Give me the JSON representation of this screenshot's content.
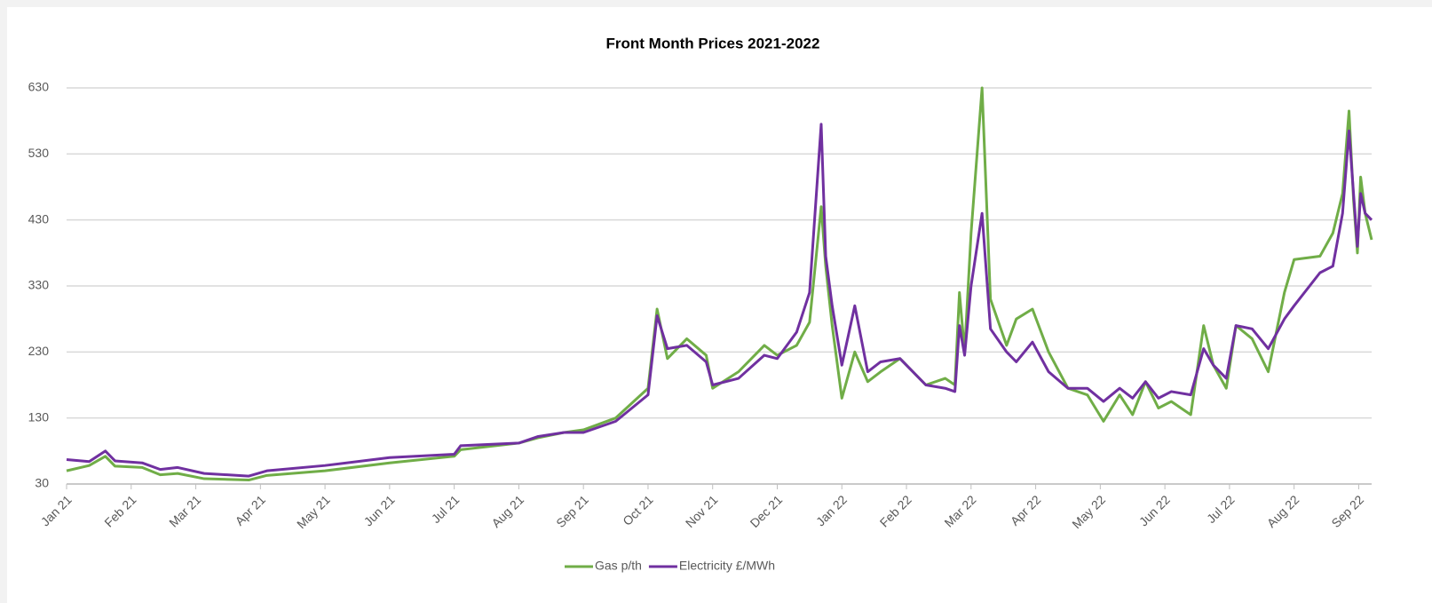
{
  "chart_data": {
    "type": "line",
    "title": "Front Month Prices 2021-2022",
    "x": [
      0,
      0.35,
      0.6,
      0.75,
      1.17,
      1.45,
      1.72,
      2.13,
      2.82,
      3.1,
      4.0,
      5.0,
      6.0,
      6.1,
      7.0,
      7.3,
      7.7,
      8.0,
      8.5,
      9.0,
      9.14,
      9.3,
      9.6,
      9.9,
      10.0,
      10.4,
      10.8,
      11.0,
      11.3,
      11.5,
      11.68,
      11.75,
      11.85,
      12.0,
      12.2,
      12.4,
      12.6,
      12.9,
      13.3,
      13.6,
      13.75,
      13.82,
      13.9,
      14.0,
      14.17,
      14.3,
      14.55,
      14.7,
      14.95,
      15.2,
      15.5,
      15.8,
      16.05,
      16.3,
      16.5,
      16.7,
      16.9,
      17.1,
      17.4,
      17.6,
      17.75,
      17.95,
      18.1,
      18.35,
      18.6,
      18.85,
      19.0,
      19.4,
      19.6,
      19.75,
      19.85,
      19.92,
      19.98,
      20.03,
      20.1,
      20.2
    ],
    "series": [
      {
        "name": "Gas p/th",
        "color": "#70ad47",
        "values": [
          50,
          58,
          72,
          57,
          55,
          44,
          46,
          38,
          36,
          43,
          50,
          62,
          72,
          82,
          92,
          100,
          108,
          112,
          130,
          175,
          295,
          220,
          250,
          225,
          175,
          200,
          240,
          225,
          240,
          275,
          450,
          360,
          270,
          160,
          230,
          185,
          200,
          220,
          180,
          190,
          180,
          320,
          230,
          410,
          630,
          310,
          240,
          280,
          295,
          230,
          175,
          165,
          125,
          165,
          135,
          185,
          145,
          155,
          135,
          270,
          210,
          175,
          270,
          250,
          200,
          320,
          370,
          375,
          410,
          470,
          595,
          460,
          380,
          495,
          440,
          400
        ]
      },
      {
        "name": "Electricity £/MWh",
        "color": "#7030a0",
        "values": [
          67,
          64,
          80,
          65,
          62,
          52,
          55,
          46,
          42,
          50,
          58,
          70,
          75,
          88,
          92,
          102,
          108,
          108,
          125,
          165,
          285,
          235,
          240,
          215,
          180,
          190,
          225,
          220,
          260,
          320,
          575,
          375,
          300,
          210,
          300,
          200,
          215,
          220,
          180,
          175,
          170,
          270,
          225,
          330,
          440,
          265,
          230,
          215,
          245,
          200,
          175,
          175,
          155,
          175,
          160,
          185,
          160,
          170,
          165,
          235,
          210,
          190,
          270,
          265,
          235,
          280,
          300,
          350,
          360,
          440,
          565,
          470,
          390,
          470,
          440,
          430
        ]
      }
    ],
    "xlim": [
      0,
      20.2
    ],
    "xticks": [
      {
        "value": 0,
        "label": "Jan 21"
      },
      {
        "value": 1,
        "label": "Feb 21"
      },
      {
        "value": 2,
        "label": "Mar 21"
      },
      {
        "value": 3,
        "label": "Apr 21"
      },
      {
        "value": 4,
        "label": "May 21"
      },
      {
        "value": 5,
        "label": "Jun 21"
      },
      {
        "value": 6,
        "label": "Jul 21"
      },
      {
        "value": 7,
        "label": "Aug 21"
      },
      {
        "value": 8,
        "label": "Sep 21"
      },
      {
        "value": 9,
        "label": "Oct 21"
      },
      {
        "value": 10,
        "label": "Nov 21"
      },
      {
        "value": 11,
        "label": "Dec 21"
      },
      {
        "value": 12,
        "label": "Jan 22"
      },
      {
        "value": 13,
        "label": "Feb 22"
      },
      {
        "value": 14,
        "label": "Mar 22"
      },
      {
        "value": 15,
        "label": "Apr 22"
      },
      {
        "value": 16,
        "label": "May 22"
      },
      {
        "value": 17,
        "label": "Jun 22"
      },
      {
        "value": 18,
        "label": "Jul 22"
      },
      {
        "value": 19,
        "label": "Aug 22"
      },
      {
        "value": 20,
        "label": "Sep 22"
      }
    ],
    "ylim": [
      30,
      630
    ],
    "yticks": [
      30,
      130,
      230,
      330,
      430,
      530,
      630
    ],
    "grid": true,
    "legend": "bottom"
  }
}
